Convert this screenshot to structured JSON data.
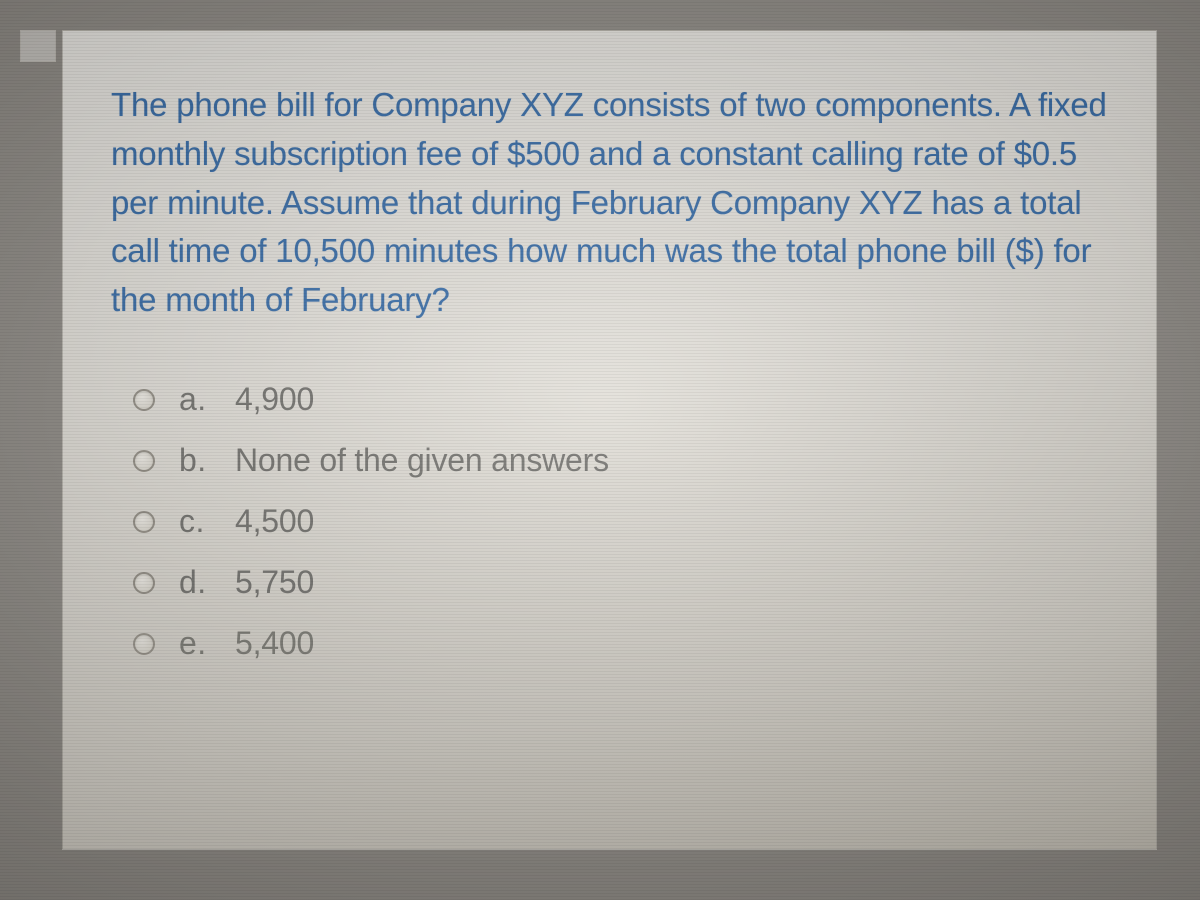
{
  "question": {
    "text": "The phone bill for Company XYZ consists of two components. A fixed monthly subscription fee of $500 and a constant calling rate of $0.5 per minute. Assume that during February Company XYZ has a total call time of 10,500 minutes how much was the total phone bill ($) for the month of February?",
    "text_color": "#2b64a4",
    "fontsize": 33
  },
  "options": [
    {
      "letter": "a.",
      "text": "4,900"
    },
    {
      "letter": "b.",
      "text": "None of the given answers"
    },
    {
      "letter": "c.",
      "text": "4,500"
    },
    {
      "letter": "d.",
      "text": "5,750"
    },
    {
      "letter": "e.",
      "text": "5,400"
    }
  ],
  "styling": {
    "card_background_top": "#e9e7e2",
    "card_background_bottom": "#c4bfb4",
    "option_text_color": "#6b6a66",
    "radio_border_color": "#8f8a80",
    "body_background": "#8a8680",
    "option_fontsize": 32,
    "line_height": 1.48
  }
}
